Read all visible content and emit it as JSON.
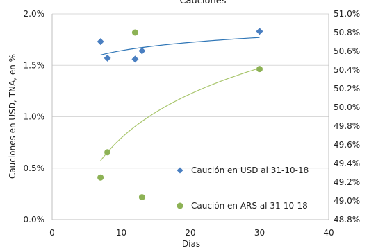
{
  "chart_data": {
    "type": "scatter",
    "title": "Cauciones",
    "xlabel": "Días",
    "ylabel_left": "Cauciones en USD, TNA, en %",
    "ylabel_right": "",
    "x_range": [
      0,
      40
    ],
    "y_left_range": [
      0,
      2.0
    ],
    "y_right_range": [
      48.8,
      51.0
    ],
    "x_ticks": [
      "0",
      "10",
      "20",
      "30",
      "40"
    ],
    "y_left_ticks": [
      "0.0%",
      "0.5%",
      "1.0%",
      "1.5%",
      "2.0%"
    ],
    "y_right_ticks": [
      "48.8%",
      "49.0%",
      "49.2%",
      "49.4%",
      "49.6%",
      "49.8%",
      "50.0%",
      "50.2%",
      "50.4%",
      "50.6%",
      "50.8%",
      "51.0%"
    ],
    "grid": "horizontal",
    "legend_position": "right-center",
    "series": [
      {
        "name": "Caución en USD al 31-10-18",
        "axis": "left",
        "marker": "diamond",
        "color": "#4a7fc1",
        "points": [
          [
            7,
            1.73
          ],
          [
            8,
            1.57
          ],
          [
            12,
            1.56
          ],
          [
            13,
            1.64
          ],
          [
            30,
            1.83
          ]
        ],
        "trendline": {
          "type": "logarithmic",
          "color": "#2e75b6",
          "x_from": 7,
          "x_to": 30,
          "y_from": 1.6,
          "y_to": 1.77
        }
      },
      {
        "name": "Caución en ARS al 31-10-18",
        "axis": "right",
        "marker": "circle",
        "color": "#8db255",
        "points": [
          [
            7,
            49.25
          ],
          [
            8,
            49.52
          ],
          [
            12,
            50.8
          ],
          [
            13,
            49.04
          ],
          [
            30,
            50.41
          ]
        ],
        "trendline": {
          "type": "logarithmic",
          "color": "#a9c66d",
          "x_from": 7,
          "x_to": 30,
          "y_from": 49.43,
          "y_to": 50.42
        }
      }
    ]
  }
}
